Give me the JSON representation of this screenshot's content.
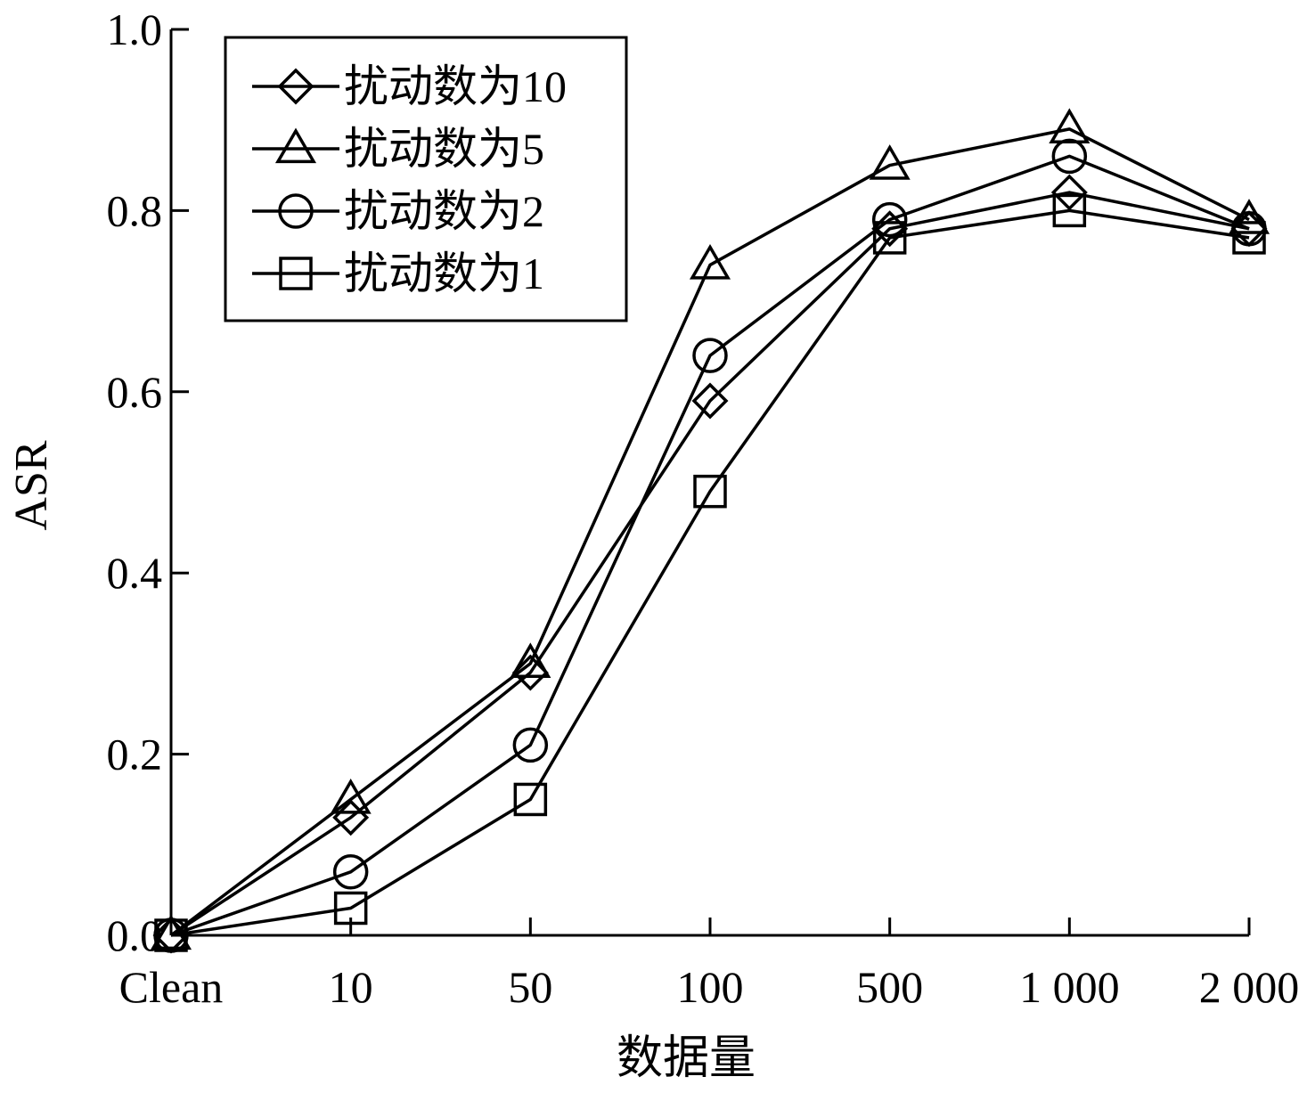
{
  "chart_data": {
    "type": "line",
    "categories": [
      "Clean",
      "10",
      "50",
      "100",
      "500",
      "1 000",
      "2 000"
    ],
    "xlabel": "数据量",
    "ylabel": "ASR",
    "ylim": [
      0,
      1.0
    ],
    "yticks": [
      "0.0",
      "0.2",
      "0.4",
      "0.6",
      "0.8",
      "1.0"
    ],
    "ytick_values": [
      0,
      0.2,
      0.4,
      0.6,
      0.8,
      1.0
    ],
    "grid": false,
    "legend_position": "top-left",
    "series": [
      {
        "name": "扰动数为10",
        "marker": "diamond",
        "values": [
          0.0,
          0.13,
          0.29,
          0.59,
          0.78,
          0.82,
          0.78
        ]
      },
      {
        "name": "扰动数为5",
        "marker": "triangle",
        "values": [
          0.0,
          0.15,
          0.3,
          0.74,
          0.85,
          0.89,
          0.79
        ]
      },
      {
        "name": "扰动数为2",
        "marker": "circle",
        "values": [
          0.0,
          0.07,
          0.21,
          0.64,
          0.79,
          0.86,
          0.78
        ]
      },
      {
        "name": "扰动数为1",
        "marker": "square",
        "values": [
          0.0,
          0.03,
          0.15,
          0.49,
          0.77,
          0.8,
          0.77
        ]
      }
    ],
    "color": "#000000"
  }
}
